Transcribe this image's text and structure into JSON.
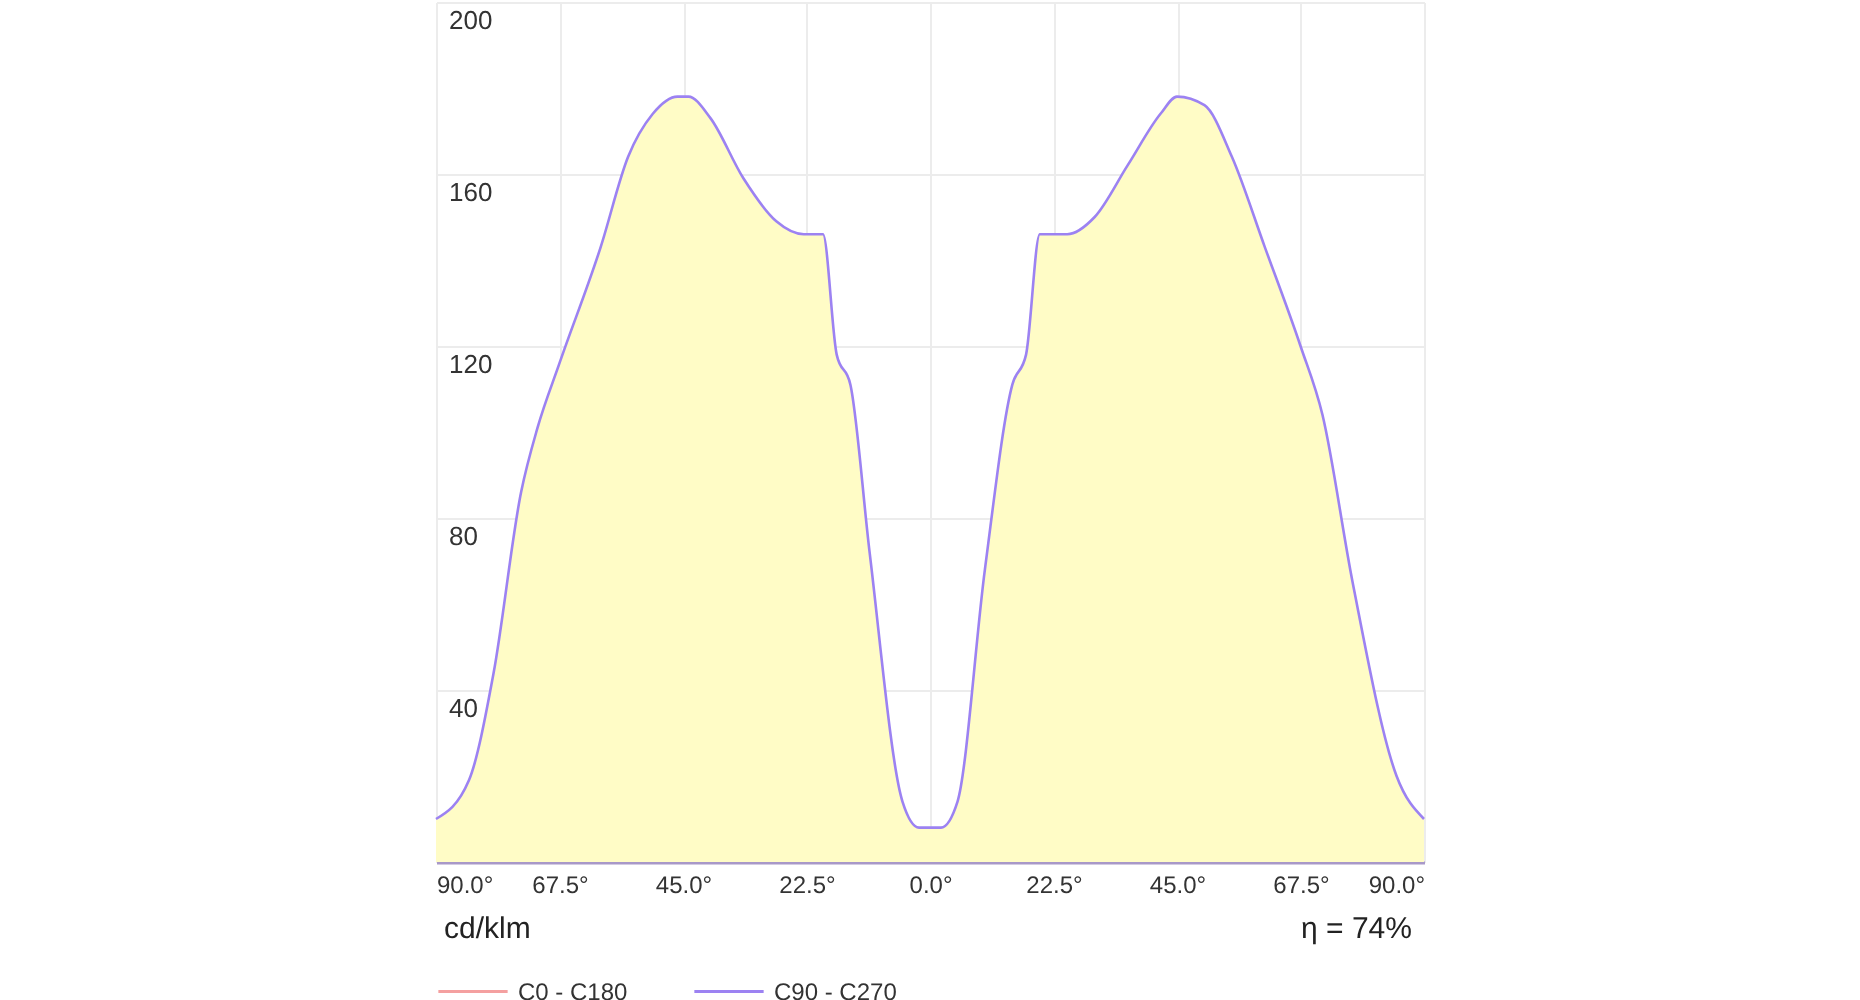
{
  "chart_data": {
    "type": "line",
    "x": [
      -90,
      -84,
      -79.5,
      -74.5,
      -71.5,
      -67.5,
      -60,
      -55,
      -50.5,
      -46,
      -44,
      -40,
      -34,
      -28,
      -23,
      -19.5,
      -17,
      -14.5,
      -11,
      -5,
      -2,
      0,
      2,
      5,
      10,
      15,
      17.5,
      20,
      25,
      30,
      36,
      42,
      45,
      50,
      55,
      61,
      67.5,
      71.5,
      77,
      85,
      90
    ],
    "series": [
      {
        "type": "area",
        "color": "#fffcc6",
        "values": [
          10,
          19,
          44,
          86,
          101,
          116,
          143,
          164,
          174,
          178,
          178,
          173,
          159,
          149,
          146,
          146,
          118,
          111,
          72,
          14,
          8,
          8,
          8,
          14,
          68,
          111,
          118,
          146,
          146,
          150,
          162,
          174,
          178,
          176,
          164,
          143,
          120,
          104,
          65,
          20,
          10
        ]
      },
      {
        "name": "C0 - C180",
        "color": "#f4a0a0",
        "values": [
          null,
          null,
          null,
          null,
          null,
          null,
          null,
          null,
          null,
          null,
          null,
          null,
          null,
          null,
          null,
          null,
          null,
          null,
          null,
          null,
          null,
          null,
          null,
          null,
          null,
          null,
          null,
          null,
          null,
          null,
          null,
          null,
          null,
          null,
          null,
          null,
          null,
          null,
          null,
          null,
          null
        ]
      },
      {
        "name": "C90 - C270",
        "color": "#9c82f2",
        "values": [
          10,
          19,
          44,
          86,
          101,
          116,
          143,
          164,
          174,
          178,
          178,
          173,
          159,
          149,
          146,
          146,
          118,
          111,
          72,
          14,
          8,
          8,
          8,
          14,
          68,
          111,
          118,
          146,
          146,
          150,
          162,
          174,
          178,
          176,
          164,
          143,
          120,
          104,
          65,
          20,
          10
        ]
      }
    ],
    "xlim": [
      -90,
      90
    ],
    "xticks": [
      {
        "value": -90,
        "label": "90.0°"
      },
      {
        "value": -67.5,
        "label": "67.5°"
      },
      {
        "value": -45,
        "label": "45.0°"
      },
      {
        "value": -22.5,
        "label": "22.5°"
      },
      {
        "value": 0,
        "label": "0.0°"
      },
      {
        "value": 22.5,
        "label": "22.5°"
      },
      {
        "value": 45,
        "label": "45.0°"
      },
      {
        "value": 67.5,
        "label": "67.5°"
      },
      {
        "value": 90,
        "label": "90.0°"
      }
    ],
    "ylim": [
      0,
      200
    ],
    "yticks": [
      40,
      80,
      120,
      160,
      200
    ],
    "annotations": [
      "cd/klm",
      "η = 74%"
    ],
    "grid": true,
    "legend": "bottom left"
  }
}
